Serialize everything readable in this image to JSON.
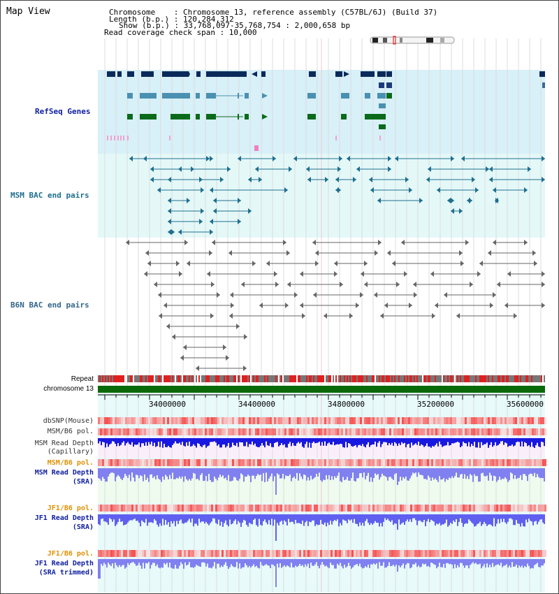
{
  "header": {
    "title": "Map View",
    "chromosome_line": "Chromosome    : Chromosome 13, reference assembly (C57BL/6J) (Build 37)",
    "length_line": "Length (b.p.) : 120,284,312",
    "show_line": "Show (b.p.) : 33,768,097-35,768,754 : 2,000,658 bp",
    "coverage_line": "Read coverage check span : 10,000"
  },
  "tracks": {
    "refseq": "RefSeq Genes",
    "msm_bac": "MSM BAC end pairs",
    "b6n_bac": "B6N BAC end pairs",
    "repeat": "Repeat",
    "chromosome": "chromosome 13",
    "dbsnp": "dbSNP(Mouse)",
    "msm_b6_pol_1": "MSM/B6 pol.",
    "msm_read_depth_cap_1": "MSM Read Depth",
    "msm_read_depth_cap_2": "(Capillary)",
    "msm_b6_pol_2": "MSM/B6 pol.",
    "msm_read_depth_sra_1": "MSM Read Depth",
    "msm_read_depth_sra_2": "(SRA)",
    "jf1_b6_pol_1": "JF1/B6 pol.",
    "jf1_read_depth_sra_1": "JF1 Read Depth",
    "jf1_read_depth_sra_2": "(SRA)",
    "jf1_b6_pol_2": "JF1/B6 pol.",
    "jf1_read_depth_trim_1": "JF1 Read Depth",
    "jf1_read_depth_trim_2": "(SRA trimmed)"
  },
  "axis": {
    "ticks": [
      "34000000",
      "34400000",
      "34800000",
      "35200000",
      "35600000"
    ]
  },
  "colors": {
    "refseq_bg": "#d8f0f8",
    "msm_bg": "#e4f8f8",
    "gene_dark": "#0a2a5a",
    "gene_mid": "#4a90b0",
    "gene_green": "#0a6a1a",
    "msm_blue": "#1f6f8f",
    "b6n_gray": "#666666",
    "chrom_green": "#0a6a0a",
    "label_blue": "#1020a0",
    "label_orange": "#e09000"
  }
}
